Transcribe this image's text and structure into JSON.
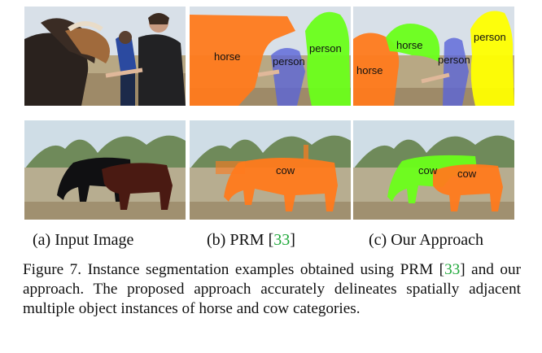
{
  "panels": {
    "row1": {
      "input": {
        "labels": []
      },
      "prm": {
        "labels": [
          "horse",
          "person",
          "person"
        ]
      },
      "ours": {
        "labels": [
          "horse",
          "horse",
          "person",
          "person"
        ]
      }
    },
    "row2": {
      "input": {
        "labels": []
      },
      "prm": {
        "labels": [
          "cow"
        ]
      },
      "ours": {
        "labels": [
          "cow",
          "cow"
        ]
      }
    }
  },
  "captions": {
    "a": "(a) Input Image",
    "b_text": "(b) PRM [",
    "b_ref": "33",
    "b_close": "]",
    "c": "(c) Our Approach"
  },
  "figure_caption": {
    "part1": "Figure 7. Instance segmentation examples obtained using PRM [",
    "ref": "33",
    "part2": "] and our approach.  The proposed approach accurately delineates spatially adjacent multiple object instances of horse and cow categories."
  },
  "colors": {
    "orange": "#ff7a1c",
    "green": "#6aff1a",
    "yellow": "#ffff00",
    "blue": "#5a64d8",
    "ref_green": "#1fa83a"
  }
}
